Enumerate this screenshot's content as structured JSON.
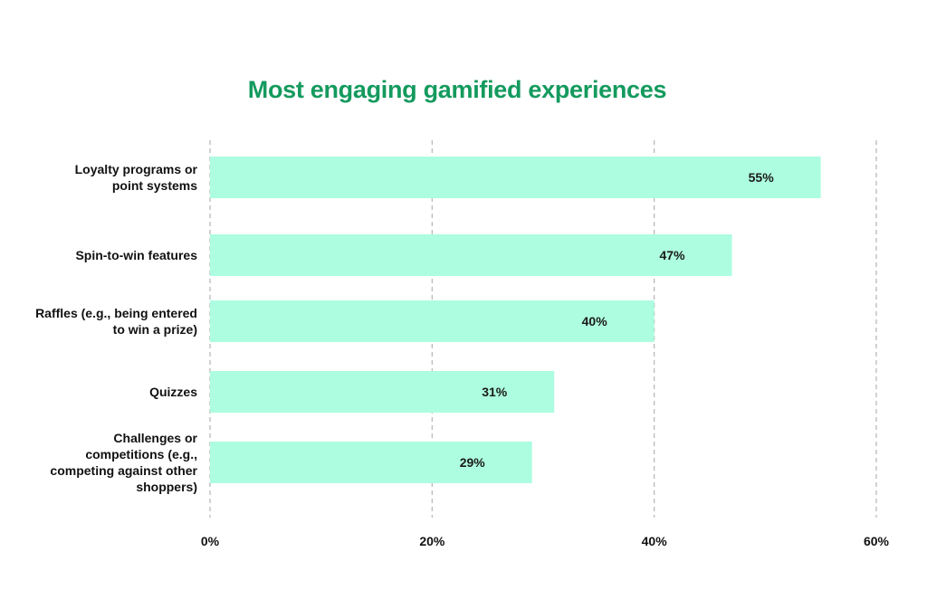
{
  "chart_data": {
    "type": "bar",
    "orientation": "horizontal",
    "title": "Most engaging gamified experiences",
    "categories": [
      [
        "Loyalty programs or",
        "point systems"
      ],
      [
        "Spin-to-win features"
      ],
      [
        "Raffles (e.g., being entered",
        "to win a prize)"
      ],
      [
        "Quizzes"
      ],
      [
        "Challenges or",
        "competitions (e.g.,",
        "competing against other",
        "shoppers)"
      ]
    ],
    "values": [
      55,
      47,
      40,
      31,
      29
    ],
    "data_labels": [
      "55%",
      "47%",
      "40%",
      "31%",
      "29%"
    ],
    "xlim": [
      0,
      60
    ],
    "x_ticks": [
      0,
      20,
      40,
      60
    ],
    "x_tick_labels": [
      "0%",
      "20%",
      "40%",
      "60%"
    ],
    "xlabel": "",
    "ylabel": "",
    "grid": "vertical dashed",
    "legend": "none"
  },
  "colors": {
    "title": "#149a5e",
    "bar": "#adfde0",
    "grid": "#b5b5b5",
    "text": "#111111"
  }
}
